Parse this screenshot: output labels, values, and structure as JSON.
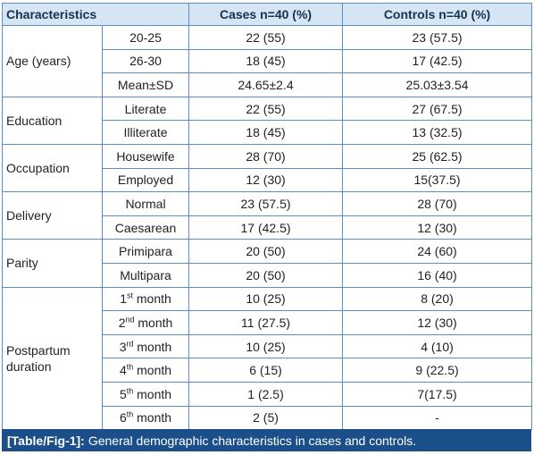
{
  "table": {
    "headers": {
      "characteristics": "Characteristics",
      "cases": "Cases n=40 (%)",
      "controls": "Controls n=40 (%)"
    },
    "groups": [
      {
        "label": "Age (years)",
        "rows": [
          {
            "sub": "20-25",
            "cases": "22 (55)",
            "controls": "23 (57.5)"
          },
          {
            "sub": "26-30",
            "cases": "18 (45)",
            "controls": "17 (42.5)"
          },
          {
            "sub": "Mean±SD",
            "cases": "24.65±2.4",
            "controls": "25.03±3.54"
          }
        ]
      },
      {
        "label": "Education",
        "rows": [
          {
            "sub": "Literate",
            "cases": "22 (55)",
            "controls": "27 (67.5)"
          },
          {
            "sub": "Illiterate",
            "cases": "18 (45)",
            "controls": "13 (32.5)"
          }
        ]
      },
      {
        "label": "Occupation",
        "rows": [
          {
            "sub": "Housewife",
            "cases": "28 (70)",
            "controls": "25 (62.5)"
          },
          {
            "sub": "Employed",
            "cases": "12 (30)",
            "controls": "15(37.5)"
          }
        ]
      },
      {
        "label": "Delivery",
        "rows": [
          {
            "sub": "Normal",
            "cases": "23 (57.5)",
            "controls": "28 (70)"
          },
          {
            "sub": "Caesarean",
            "cases": "17 (42.5)",
            "controls": "12 (30)"
          }
        ]
      },
      {
        "label": "Parity",
        "rows": [
          {
            "sub": "Primipara",
            "cases": "20 (50)",
            "controls": "24 (60)"
          },
          {
            "sub": "Multipara",
            "cases": "20 (50)",
            "controls": "16 (40)"
          }
        ]
      },
      {
        "label_line1": "Postpartum",
        "label_line2": "duration",
        "rows": [
          {
            "sub_num": "1",
            "sub_sup": "st",
            "sub_word": "month",
            "cases": "10 (25)",
            "controls": "8 (20)"
          },
          {
            "sub_num": "2",
            "sub_sup": "nd",
            "sub_word": "month",
            "cases": "11 (27.5)",
            "controls": "12 (30)"
          },
          {
            "sub_num": "3",
            "sub_sup": "rd",
            "sub_word": "month",
            "cases": "10 (25)",
            "controls": "4 (10)"
          },
          {
            "sub_num": "4",
            "sub_sup": "th",
            "sub_word": "month",
            "cases": "6 (15)",
            "controls": "9 (22.5)"
          },
          {
            "sub_num": "5",
            "sub_sup": "th",
            "sub_word": "month",
            "cases": "1 (2.5)",
            "controls": "7(17.5)"
          },
          {
            "sub_num": "6",
            "sub_sup": "th",
            "sub_word": "month",
            "cases": "2 (5)",
            "controls": "-"
          }
        ]
      }
    ]
  },
  "caption": {
    "label": "[Table/Fig-1]:",
    "text": "General demographic characteristics in cases and controls."
  },
  "colors": {
    "header_bg": "#d5e5f3",
    "border": "#5a8fbf",
    "caption_bg": "#1b4f8a"
  }
}
